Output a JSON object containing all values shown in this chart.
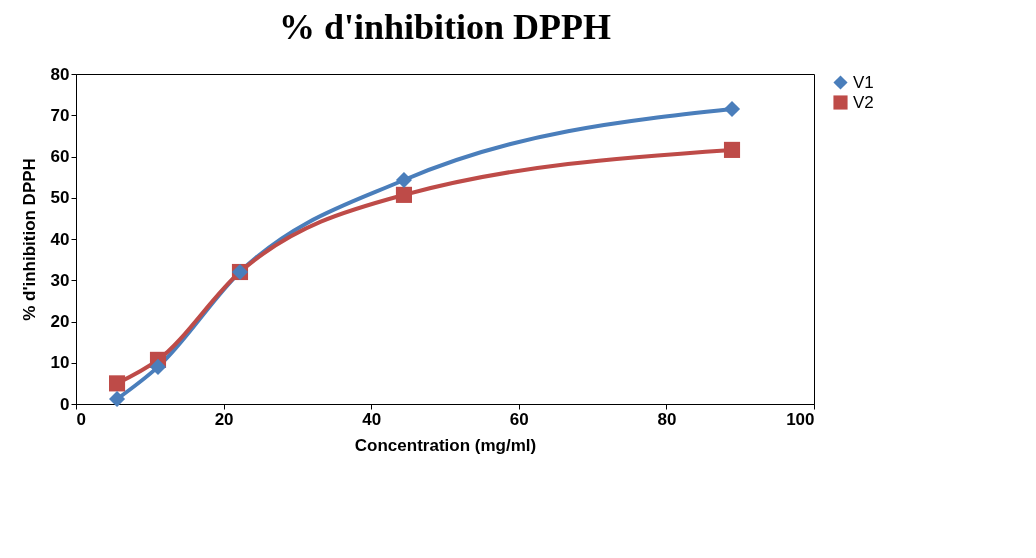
{
  "chart_data": {
    "type": "line",
    "title": "% d'inhibition DPPH",
    "xlabel": "Concentration (mg/ml)",
    "ylabel": "% d'inhibition DPPH",
    "x": [
      5.56,
      11.11,
      22.22,
      44.44,
      88.89
    ],
    "series": [
      {
        "name": "V1",
        "color": "#4a7ebb",
        "marker": "diamond",
        "values": [
          1.2,
          9,
          32,
          54.3,
          71.5
        ]
      },
      {
        "name": "V2",
        "color": "#be4b48",
        "marker": "square",
        "values": [
          5,
          10.7,
          32,
          50.7,
          61.6
        ]
      }
    ],
    "xlim": [
      0,
      100
    ],
    "xticks": [
      0,
      20,
      40,
      60,
      80,
      100
    ],
    "ylim": [
      0,
      80
    ],
    "yticks": [
      0,
      10,
      20,
      30,
      40,
      50,
      60,
      70,
      80
    ],
    "grid": false,
    "legend": "right",
    "line_style": "solid"
  }
}
